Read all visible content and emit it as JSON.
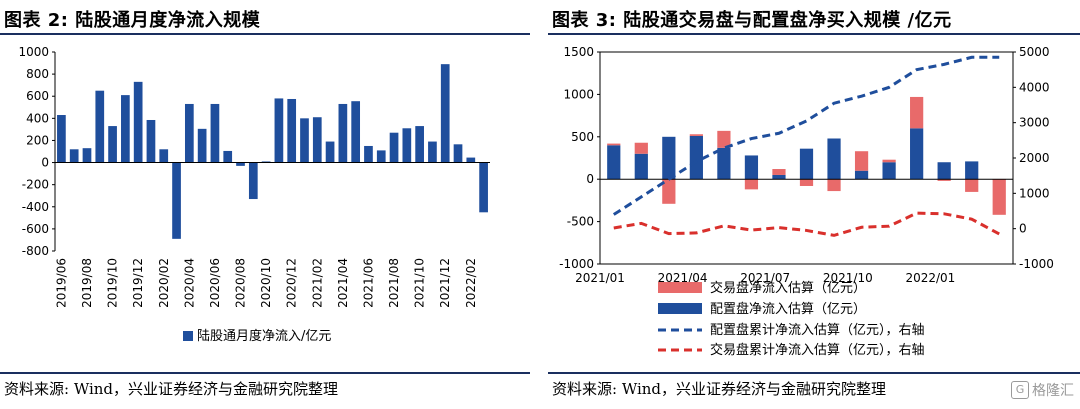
{
  "left": {
    "title": "图表 2:  陆股通月度净流入规模",
    "source": "资料来源:  Wind，兴业证券经济与金融研究院整理"
  },
  "right": {
    "title": "图表 3:  陆股通交易盘与配置盘净买入规模 /亿元",
    "source": "资料来源:  Wind，兴业证券经济与金融研究院整理"
  },
  "watermark": {
    "icon": "gelonghui-logo-icon",
    "text": "格隆汇"
  },
  "chart_data": [
    {
      "type": "bar",
      "legend_position": "bottom",
      "categories": [
        "2019/06",
        "2019/07",
        "2019/08",
        "2019/09",
        "2019/10",
        "2019/11",
        "2019/12",
        "2020/01",
        "2020/02",
        "2020/03",
        "2020/04",
        "2020/05",
        "2020/06",
        "2020/07",
        "2020/08",
        "2020/09",
        "2020/10",
        "2020/11",
        "2020/12",
        "2021/01",
        "2021/02",
        "2021/03",
        "2021/04",
        "2021/05",
        "2021/06",
        "2021/07",
        "2021/08",
        "2021/09",
        "2021/10",
        "2021/11",
        "2021/12",
        "2022/01",
        "2022/02",
        "2022/03"
      ],
      "tick_labels": [
        "2019/06",
        "2019/08",
        "2019/10",
        "2019/12",
        "2020/02",
        "2020/04",
        "2020/06",
        "2020/08",
        "2020/10",
        "2020/12",
        "2021/02",
        "2021/04",
        "2021/06",
        "2021/08",
        "2021/10",
        "2021/12",
        "2022/02"
      ],
      "series": [
        {
          "name": "陆股通月度净流入/亿元",
          "color": "#1f4e9c",
          "values": [
            430,
            120,
            130,
            650,
            330,
            610,
            730,
            385,
            120,
            -690,
            530,
            305,
            530,
            105,
            -30,
            -330,
            10,
            580,
            575,
            400,
            410,
            190,
            530,
            555,
            150,
            110,
            270,
            310,
            330,
            190,
            890,
            165,
            45,
            -450
          ]
        }
      ],
      "ylim": [
        -800,
        1000
      ],
      "yticks": [
        -800,
        -600,
        -400,
        -200,
        0,
        200,
        400,
        600,
        800,
        1000
      ]
    },
    {
      "type": "bar",
      "legend_position": "bottom",
      "categories": [
        "2021/01",
        "2021/02",
        "2021/03",
        "2021/04",
        "2021/05",
        "2021/06",
        "2021/07",
        "2021/08",
        "2021/09",
        "2021/10",
        "2021/11",
        "2021/12",
        "2022/01",
        "2022/02",
        "2022/03"
      ],
      "tick_labels": [
        "2021/01",
        "2021/04",
        "2021/07",
        "2021/10",
        "2022/01"
      ],
      "series": [
        {
          "name": "交易盘净流入估算（亿元）",
          "kind": "bar",
          "axis": "left",
          "color": "#e86a6a",
          "values": [
            20,
            130,
            -290,
            20,
            200,
            -120,
            70,
            -80,
            -140,
            230,
            30,
            370,
            -20,
            -150,
            -420
          ]
        },
        {
          "name": "配置盘净流入估算（亿元）",
          "kind": "bar",
          "axis": "left",
          "color": "#1f4e9c",
          "values": [
            400,
            300,
            500,
            510,
            370,
            280,
            50,
            360,
            480,
            100,
            200,
            600,
            200,
            210,
            0
          ]
        },
        {
          "name": "配置盘累计净流入估算（亿元），右轴",
          "kind": "line",
          "dash": "dashed",
          "axis": "right",
          "color": "#1f4e9c",
          "values": [
            400,
            900,
            1400,
            1900,
            2280,
            2550,
            2700,
            3050,
            3550,
            3750,
            4000,
            4500,
            4650,
            4850,
            4850
          ]
        },
        {
          "name": "交易盘累计净流入估算（亿元），右轴",
          "kind": "line",
          "dash": "dashed",
          "axis": "right",
          "color": "#d9302c",
          "values": [
            20,
            150,
            -140,
            -120,
            80,
            -40,
            30,
            -50,
            -190,
            40,
            70,
            440,
            420,
            270,
            -150
          ]
        }
      ],
      "ylim": [
        -1000,
        1500
      ],
      "yticks": [
        -1000,
        -500,
        0,
        500,
        1000,
        1500
      ],
      "y2lim": [
        -1000,
        5000
      ],
      "y2ticks": [
        -1000,
        0,
        1000,
        2000,
        3000,
        4000,
        5000
      ]
    }
  ]
}
